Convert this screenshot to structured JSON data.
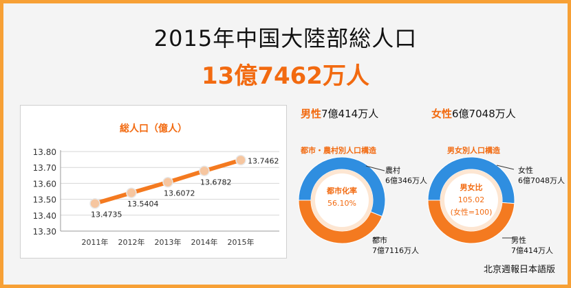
{
  "header": {
    "title": "2015年中国大陸部総人口",
    "total": "13億7462万人"
  },
  "chart_data": [
    {
      "type": "line",
      "title": "総人口（億人）",
      "categories": [
        "2011年",
        "2012年",
        "2013年",
        "2014年",
        "2015年"
      ],
      "series": [
        {
          "values": [
            13.4735,
            13.5404,
            13.6072,
            13.6782,
            13.7462
          ]
        }
      ],
      "data_labels": [
        "13.4735",
        "13.5404",
        "13.6072",
        "13.6782",
        "13.7462"
      ],
      "yticks": [
        "13.80",
        "13.70",
        "13.60",
        "13.50",
        "13.40",
        "13.30"
      ],
      "ylim": [
        13.3,
        13.8
      ],
      "grid": true,
      "color": "#f47a20"
    },
    {
      "type": "pie",
      "title": "都市・農村別人口構造",
      "center_label": "都市化率",
      "center_value": "56.10%",
      "slices": [
        {
          "name": "都市",
          "value": 56.1,
          "color": "#2f8ee0",
          "label": [
            "都市",
            "7億7116万人"
          ]
        },
        {
          "name": "農村",
          "value": 43.9,
          "color": "#f47a20",
          "label": [
            "農村",
            "6億346万人"
          ]
        }
      ]
    },
    {
      "type": "pie",
      "title": "男女別人口構造",
      "center_label": "男女比",
      "center_value": "105.02",
      "center_note": "(女性=100)",
      "slices": [
        {
          "name": "男性",
          "value": 51.2,
          "color": "#2f8ee0",
          "label": [
            "男性",
            "7億414万人"
          ]
        },
        {
          "name": "女性",
          "value": 48.8,
          "color": "#f47a20",
          "label": [
            "女性",
            "6億7048万人"
          ]
        }
      ]
    }
  ],
  "summary": {
    "male_label": "男性",
    "male_value": "7億414万人",
    "female_label": "女性",
    "female_value": "6億7048万人"
  },
  "footer": "北京週報日本語版"
}
